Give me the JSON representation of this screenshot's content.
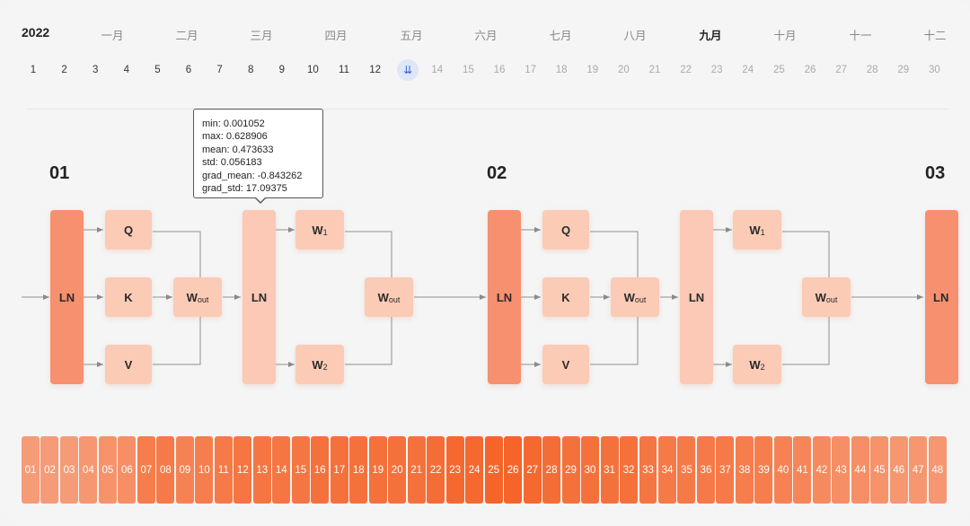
{
  "calendar": {
    "year": "2022",
    "months": [
      "一月",
      "二月",
      "三月",
      "四月",
      "五月",
      "六月",
      "七月",
      "八月",
      "九月",
      "十月",
      "十一",
      "十二"
    ],
    "active_month": "九月",
    "days": [
      "1",
      "2",
      "3",
      "4",
      "5",
      "6",
      "7",
      "8",
      "9",
      "10",
      "11",
      "12",
      "13",
      "14",
      "15",
      "16",
      "17",
      "18",
      "19",
      "20",
      "21",
      "22",
      "23",
      "24",
      "25",
      "26",
      "27",
      "28",
      "29",
      "30"
    ],
    "current_day_glyph": "⇊"
  },
  "tooltip": {
    "lines": [
      "min:  0.001052",
      "max:  0.628906",
      "mean:  0.473633",
      "std:  0.056183",
      "grad_mean:  -0.843262",
      "grad_std:  17.09375"
    ]
  },
  "blocks": {
    "labels": [
      "01",
      "02",
      "03"
    ],
    "ln": "LN",
    "q": "Q",
    "k": "K",
    "v": "V",
    "w": "W",
    "out_sub": "out",
    "w1_sub": "1",
    "w2_sub": "2"
  },
  "strip": {
    "cells": [
      "01",
      "02",
      "03",
      "04",
      "05",
      "06",
      "07",
      "08",
      "09",
      "10",
      "11",
      "12",
      "13",
      "14",
      "15",
      "16",
      "17",
      "18",
      "19",
      "20",
      "21",
      "22",
      "23",
      "24",
      "25",
      "26",
      "27",
      "28",
      "29",
      "30",
      "31",
      "32",
      "33",
      "34",
      "35",
      "36",
      "37",
      "38",
      "39",
      "40",
      "41",
      "42",
      "43",
      "44",
      "45",
      "46",
      "47",
      "48"
    ],
    "intensity": [
      0.35,
      0.35,
      0.35,
      0.4,
      0.45,
      0.5,
      0.7,
      0.75,
      0.65,
      0.7,
      0.75,
      0.8,
      0.8,
      0.8,
      0.8,
      0.85,
      0.85,
      0.85,
      0.85,
      0.85,
      0.85,
      0.9,
      0.95,
      0.95,
      1.0,
      1.0,
      0.95,
      0.9,
      0.85,
      0.85,
      0.85,
      0.85,
      0.8,
      0.75,
      0.75,
      0.75,
      0.75,
      0.7,
      0.7,
      0.65,
      0.6,
      0.55,
      0.5,
      0.5,
      0.45,
      0.4,
      0.4,
      0.4
    ],
    "color_low": "#f7b8a0",
    "color_high": "#f5652a"
  }
}
